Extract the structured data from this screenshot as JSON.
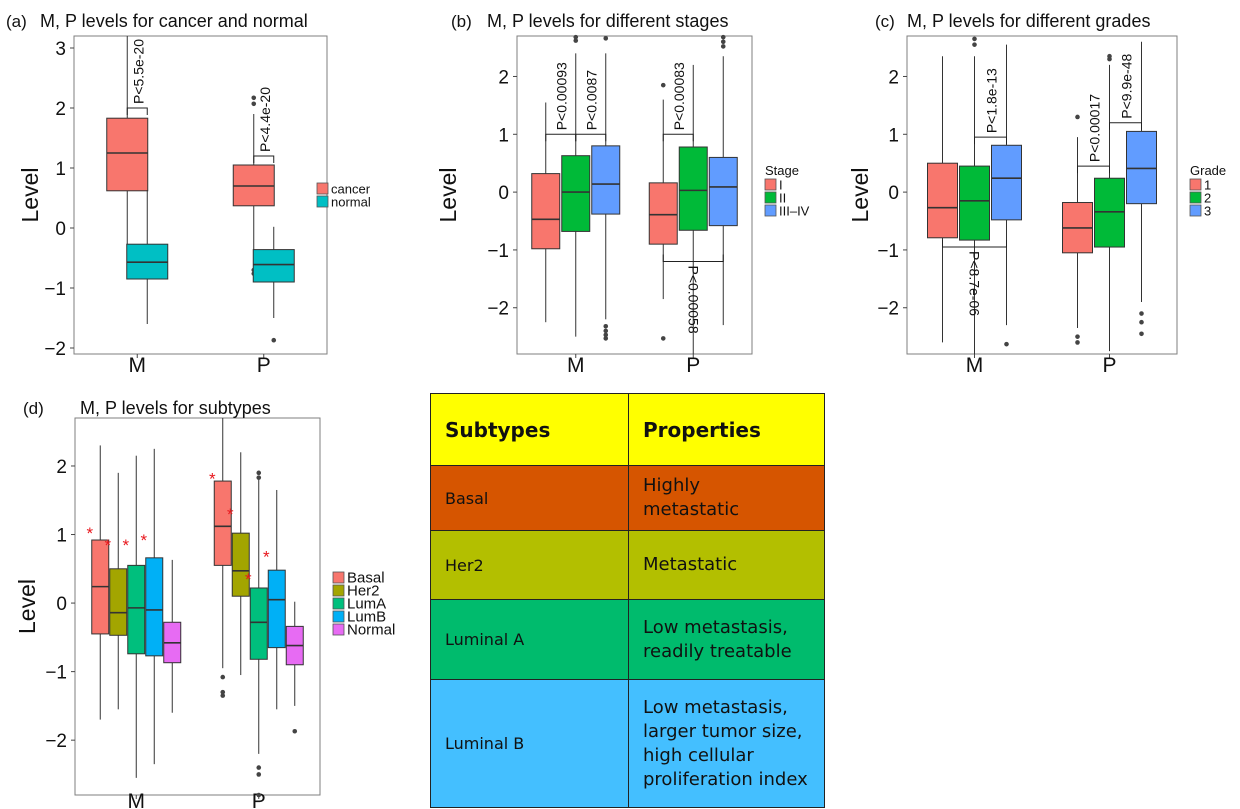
{
  "charts": [
    {
      "panel_label": "(a)",
      "title": "M, P levels for cancer and normal",
      "ylabel": "Level",
      "categories": [
        "M",
        "P"
      ],
      "yticks": [
        -2,
        -1,
        0,
        1,
        2,
        3
      ],
      "ylim": [
        -2.1,
        3.2
      ],
      "legend_title": "",
      "legend": [
        {
          "name": "cancer",
          "color": "#F8766D"
        },
        {
          "name": "normal",
          "color": "#00BFC4"
        }
      ],
      "boxes": [
        {
          "cat": 0,
          "group": 0,
          "q1": 0.62,
          "median": 1.25,
          "q3": 1.83,
          "whisker_low": -0.8,
          "whisker_high": 3.2,
          "outliers": []
        },
        {
          "cat": 0,
          "group": 1,
          "q1": -0.85,
          "median": -0.57,
          "q3": -0.27,
          "whisker_low": -1.6,
          "whisker_high": 0.63,
          "outliers": []
        },
        {
          "cat": 1,
          "group": 0,
          "q1": 0.37,
          "median": 0.7,
          "q3": 1.05,
          "whisker_low": -0.6,
          "whisker_high": 1.9,
          "outliers": [
            2.17,
            2.07,
            -0.7,
            -0.76
          ]
        },
        {
          "cat": 1,
          "group": 1,
          "q1": -0.9,
          "median": -0.61,
          "q3": -0.36,
          "whisker_low": -1.5,
          "whisker_high": 0.02,
          "outliers": [
            -1.87
          ]
        }
      ],
      "annotations": [
        {
          "text": "P<5.5e-20",
          "b1": {
            "cat": 0,
            "group": 0
          },
          "b2": {
            "cat": 0,
            "group": 1
          },
          "y": 2.0,
          "dir": "up"
        },
        {
          "text": "P<4.4e-20",
          "b1": {
            "cat": 1,
            "group": 0
          },
          "b2": {
            "cat": 1,
            "group": 1
          },
          "y": 1.2,
          "dir": "up"
        }
      ]
    },
    {
      "panel_label": "(b)",
      "title": "M, P levels for different stages",
      "ylabel": "Level",
      "categories": [
        "M",
        "P"
      ],
      "yticks": [
        -2,
        -1,
        0,
        1,
        2
      ],
      "ylim": [
        -2.8,
        2.7
      ],
      "legend_title": "Stage",
      "legend": [
        {
          "name": "I",
          "color": "#F8766D"
        },
        {
          "name": "II",
          "color": "#00BA38"
        },
        {
          "name": "III–IV",
          "color": "#619CFF"
        }
      ],
      "boxes": [
        {
          "cat": 0,
          "group": 0,
          "q1": -0.98,
          "median": -0.47,
          "q3": 0.32,
          "whisker_low": -2.25,
          "whisker_high": 1.55,
          "outliers": []
        },
        {
          "cat": 0,
          "group": 1,
          "q1": -0.68,
          "median": 0.0,
          "q3": 0.63,
          "whisker_low": -2.5,
          "whisker_high": 2.4,
          "outliers": [
            2.62,
            2.68
          ]
        },
        {
          "cat": 0,
          "group": 2,
          "q1": -0.38,
          "median": 0.14,
          "q3": 0.8,
          "whisker_low": -2.2,
          "whisker_high": 2.4,
          "outliers": [
            2.66,
            -2.32,
            -2.4,
            -2.47,
            -2.53
          ]
        },
        {
          "cat": 1,
          "group": 0,
          "q1": -0.9,
          "median": -0.39,
          "q3": 0.16,
          "whisker_low": -1.85,
          "whisker_high": 1.6,
          "outliers": [
            1.85,
            -2.53
          ]
        },
        {
          "cat": 1,
          "group": 1,
          "q1": -0.66,
          "median": 0.03,
          "q3": 0.78,
          "whisker_low": -2.8,
          "whisker_high": 2.2,
          "outliers": []
        },
        {
          "cat": 1,
          "group": 2,
          "q1": -0.58,
          "median": 0.09,
          "q3": 0.6,
          "whisker_low": -2.3,
          "whisker_high": 2.35,
          "outliers": [
            2.52,
            2.6,
            2.68
          ]
        }
      ],
      "annotations": [
        {
          "text": "P<0.00093",
          "b1": {
            "cat": 0,
            "group": 0
          },
          "b2": {
            "cat": 0,
            "group": 1
          },
          "y": 1.0,
          "dir": "up"
        },
        {
          "text": "P<0.0087",
          "b1": {
            "cat": 0,
            "group": 1
          },
          "b2": {
            "cat": 0,
            "group": 2
          },
          "y": 1.0,
          "dir": "up"
        },
        {
          "text": "P<0.00083",
          "b1": {
            "cat": 1,
            "group": 0
          },
          "b2": {
            "cat": 1,
            "group": 1
          },
          "y": 1.0,
          "dir": "up"
        },
        {
          "text": "P<0.00058",
          "b1": {
            "cat": 1,
            "group": 0
          },
          "b2": {
            "cat": 1,
            "group": 2
          },
          "y": -1.2,
          "dir": "down"
        }
      ]
    },
    {
      "panel_label": "(c)",
      "title": "M, P levels for different grades",
      "ylabel": "Level",
      "categories": [
        "M",
        "P"
      ],
      "yticks": [
        -2,
        -1,
        0,
        1,
        2
      ],
      "ylim": [
        -2.8,
        2.7
      ],
      "legend_title": "Grade",
      "legend": [
        {
          "name": "1",
          "color": "#F8766D"
        },
        {
          "name": "2",
          "color": "#00BA38"
        },
        {
          "name": "3",
          "color": "#619CFF"
        }
      ],
      "boxes": [
        {
          "cat": 0,
          "group": 0,
          "q1": -0.79,
          "median": -0.27,
          "q3": 0.5,
          "whisker_low": -2.6,
          "whisker_high": 2.35,
          "outliers": []
        },
        {
          "cat": 0,
          "group": 1,
          "q1": -0.83,
          "median": -0.15,
          "q3": 0.45,
          "whisker_low": -2.8,
          "whisker_high": 2.35,
          "outliers": [
            2.55,
            2.65
          ]
        },
        {
          "cat": 0,
          "group": 2,
          "q1": -0.48,
          "median": 0.24,
          "q3": 0.81,
          "whisker_low": -2.3,
          "whisker_high": 2.55,
          "outliers": [
            -2.63
          ]
        },
        {
          "cat": 1,
          "group": 0,
          "q1": -1.05,
          "median": -0.62,
          "q3": -0.18,
          "whisker_low": -2.35,
          "whisker_high": 0.95,
          "outliers": [
            1.3,
            -2.5,
            -2.6
          ]
        },
        {
          "cat": 1,
          "group": 1,
          "q1": -0.95,
          "median": -0.34,
          "q3": 0.24,
          "whisker_low": -2.75,
          "whisker_high": 2.2,
          "outliers": [
            2.3,
            2.35
          ]
        },
        {
          "cat": 1,
          "group": 2,
          "q1": -0.2,
          "median": 0.41,
          "q3": 1.05,
          "whisker_low": -1.9,
          "whisker_high": 2.6,
          "outliers": [
            -2.1,
            -2.25,
            -2.45
          ]
        }
      ],
      "annotations": [
        {
          "text": "P<1.8e-13",
          "b1": {
            "cat": 0,
            "group": 1
          },
          "b2": {
            "cat": 0,
            "group": 2
          },
          "y": 0.95,
          "dir": "up"
        },
        {
          "text": "P<0.00017",
          "b1": {
            "cat": 1,
            "group": 0
          },
          "b2": {
            "cat": 1,
            "group": 1
          },
          "y": 0.45,
          "dir": "up"
        },
        {
          "text": "P<9.9e-48",
          "b1": {
            "cat": 1,
            "group": 1
          },
          "b2": {
            "cat": 1,
            "group": 2
          },
          "y": 1.2,
          "dir": "up"
        },
        {
          "text": "P<8.7e-06",
          "b1": {
            "cat": 0,
            "group": 0
          },
          "b2": {
            "cat": 0,
            "group": 2
          },
          "y": -0.95,
          "dir": "down"
        }
      ]
    },
    {
      "panel_label": "(d)",
      "title": "M, P levels for subtypes",
      "ylabel": "Level",
      "categories": [
        "M",
        "P"
      ],
      "yticks": [
        -2,
        -1,
        0,
        1,
        2
      ],
      "ylim": [
        -2.8,
        2.7
      ],
      "legend_title": "",
      "legend": [
        {
          "name": "Basal",
          "color": "#F8766D"
        },
        {
          "name": "Her2",
          "color": "#A3A500"
        },
        {
          "name": "LumA",
          "color": "#00BF7D"
        },
        {
          "name": "LumB",
          "color": "#00B0F6"
        },
        {
          "name": "Normal",
          "color": "#E76BF3"
        }
      ],
      "boxes": [
        {
          "cat": 0,
          "group": 0,
          "q1": -0.45,
          "median": 0.24,
          "q3": 0.92,
          "whisker_low": -1.7,
          "whisker_high": 2.3,
          "outliers": []
        },
        {
          "cat": 0,
          "group": 1,
          "q1": -0.47,
          "median": -0.14,
          "q3": 0.5,
          "whisker_low": -1.55,
          "whisker_high": 1.9,
          "outliers": []
        },
        {
          "cat": 0,
          "group": 2,
          "q1": -0.74,
          "median": -0.07,
          "q3": 0.55,
          "whisker_low": -2.55,
          "whisker_high": 2.15,
          "outliers": []
        },
        {
          "cat": 0,
          "group": 3,
          "q1": -0.77,
          "median": -0.1,
          "q3": 0.66,
          "whisker_low": -2.35,
          "whisker_high": 2.25,
          "outliers": []
        },
        {
          "cat": 0,
          "group": 4,
          "q1": -0.87,
          "median": -0.58,
          "q3": -0.28,
          "whisker_low": -1.6,
          "whisker_high": 0.63,
          "outliers": []
        },
        {
          "cat": 1,
          "group": 0,
          "q1": 0.55,
          "median": 1.12,
          "q3": 1.78,
          "whisker_low": -0.95,
          "whisker_high": 2.7,
          "outliers": [
            -1.08,
            -1.3,
            -1.35
          ]
        },
        {
          "cat": 1,
          "group": 1,
          "q1": 0.1,
          "median": 0.47,
          "q3": 1.02,
          "whisker_low": -1.05,
          "whisker_high": 2.2,
          "outliers": []
        },
        {
          "cat": 1,
          "group": 2,
          "q1": -0.82,
          "median": -0.28,
          "q3": 0.22,
          "whisker_low": -2.2,
          "whisker_high": 1.85,
          "outliers": [
            1.83,
            1.9,
            -2.4,
            -2.5,
            -2.8
          ]
        },
        {
          "cat": 1,
          "group": 3,
          "q1": -0.65,
          "median": 0.05,
          "q3": 0.48,
          "whisker_low": -1.55,
          "whisker_high": 1.65,
          "outliers": []
        },
        {
          "cat": 1,
          "group": 4,
          "q1": -0.9,
          "median": -0.62,
          "q3": -0.34,
          "whisker_low": -1.5,
          "whisker_high": 0.02,
          "outliers": [
            -1.87
          ]
        }
      ],
      "stars": [
        {
          "cat": 0,
          "group": 0,
          "y": 1.05
        },
        {
          "cat": 0,
          "group": 1,
          "y": 0.88
        },
        {
          "cat": 0,
          "group": 2,
          "y": 0.88
        },
        {
          "cat": 0,
          "group": 3,
          "y": 0.95
        },
        {
          "cat": 1,
          "group": 0,
          "y": 1.85
        },
        {
          "cat": 1,
          "group": 1,
          "y": 1.33
        },
        {
          "cat": 1,
          "group": 2,
          "y": 0.38
        },
        {
          "cat": 1,
          "group": 3,
          "y": 0.71
        }
      ],
      "star_color": "#e8171d"
    }
  ],
  "table": {
    "header": [
      "Subtypes",
      "Properties"
    ],
    "header_color": "#ffff00",
    "rows": [
      {
        "subtype": "Basal",
        "properties": "Highly metastatic",
        "color": "#d65500"
      },
      {
        "subtype": "Her2",
        "properties": "Metastatic",
        "color": "#b3bf00"
      },
      {
        "subtype": "Luminal A",
        "properties": "Low metastasis, readily treatable",
        "color": "#00bb6d"
      },
      {
        "subtype": "Luminal B",
        "properties": "Low metastasis, larger tumor size, high cellular proliferation index",
        "color": "#44bfff"
      }
    ]
  }
}
